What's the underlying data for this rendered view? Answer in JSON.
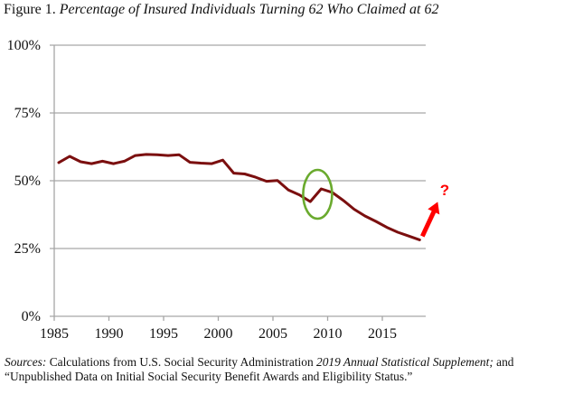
{
  "figure": {
    "label": "Figure 1.",
    "title": "Percentage of Insured Individuals Turning 62 Who Claimed at 62"
  },
  "chart_data": {
    "type": "line",
    "title": "Percentage of Insured Individuals Turning 62 Who Claimed at 62",
    "xlabel": "",
    "ylabel": "",
    "x_tick_labels": [
      "1985",
      "1990",
      "1995",
      "2000",
      "2005",
      "2010",
      "2015"
    ],
    "y_tick_labels": [
      "0%",
      "25%",
      "50%",
      "75%",
      "100%"
    ],
    "ylim": [
      0,
      100
    ],
    "xlim": [
      1985,
      2018
    ],
    "grid": "horizontal",
    "legend": "none",
    "series": [
      {
        "name": "Claimed at 62 (%)",
        "color": "#7b0f0f",
        "x": [
          1985,
          1986,
          1987,
          1988,
          1989,
          1990,
          1991,
          1992,
          1993,
          1994,
          1995,
          1996,
          1997,
          1998,
          1999,
          2000,
          2001,
          2002,
          2003,
          2004,
          2005,
          2006,
          2007,
          2008,
          2009,
          2010,
          2011,
          2012,
          2013,
          2014,
          2015,
          2016,
          2017,
          2018
        ],
        "values": [
          56.7,
          59.0,
          57.0,
          56.3,
          57.2,
          56.3,
          57.2,
          59.3,
          59.7,
          59.6,
          59.3,
          59.6,
          56.8,
          56.5,
          56.3,
          57.6,
          52.8,
          52.5,
          51.3,
          49.8,
          50.1,
          46.6,
          44.8,
          42.3,
          47.0,
          45.7,
          42.8,
          39.5,
          37.0,
          35.0,
          32.8,
          31.0,
          29.6,
          28.2
        ]
      }
    ],
    "annotations": [
      {
        "type": "ellipse",
        "target_year": 2009,
        "color": "#6aaa2e",
        "description": "Highlight of 2009 uptick"
      },
      {
        "type": "arrow",
        "from_year": 2018,
        "direction": "up",
        "color": "#ff0000"
      },
      {
        "type": "text",
        "text": "?",
        "color": "#ff0000"
      }
    ]
  },
  "sources": {
    "label": "Sources:",
    "text1": " Calculations from U.S. Social Security Administration ",
    "italic": "2019 Annual Statistical Supplement;",
    "text2": " and",
    "line2": "“Unpublished Data on Initial Social Security Benefit Awards and Eligibility Status.”"
  }
}
